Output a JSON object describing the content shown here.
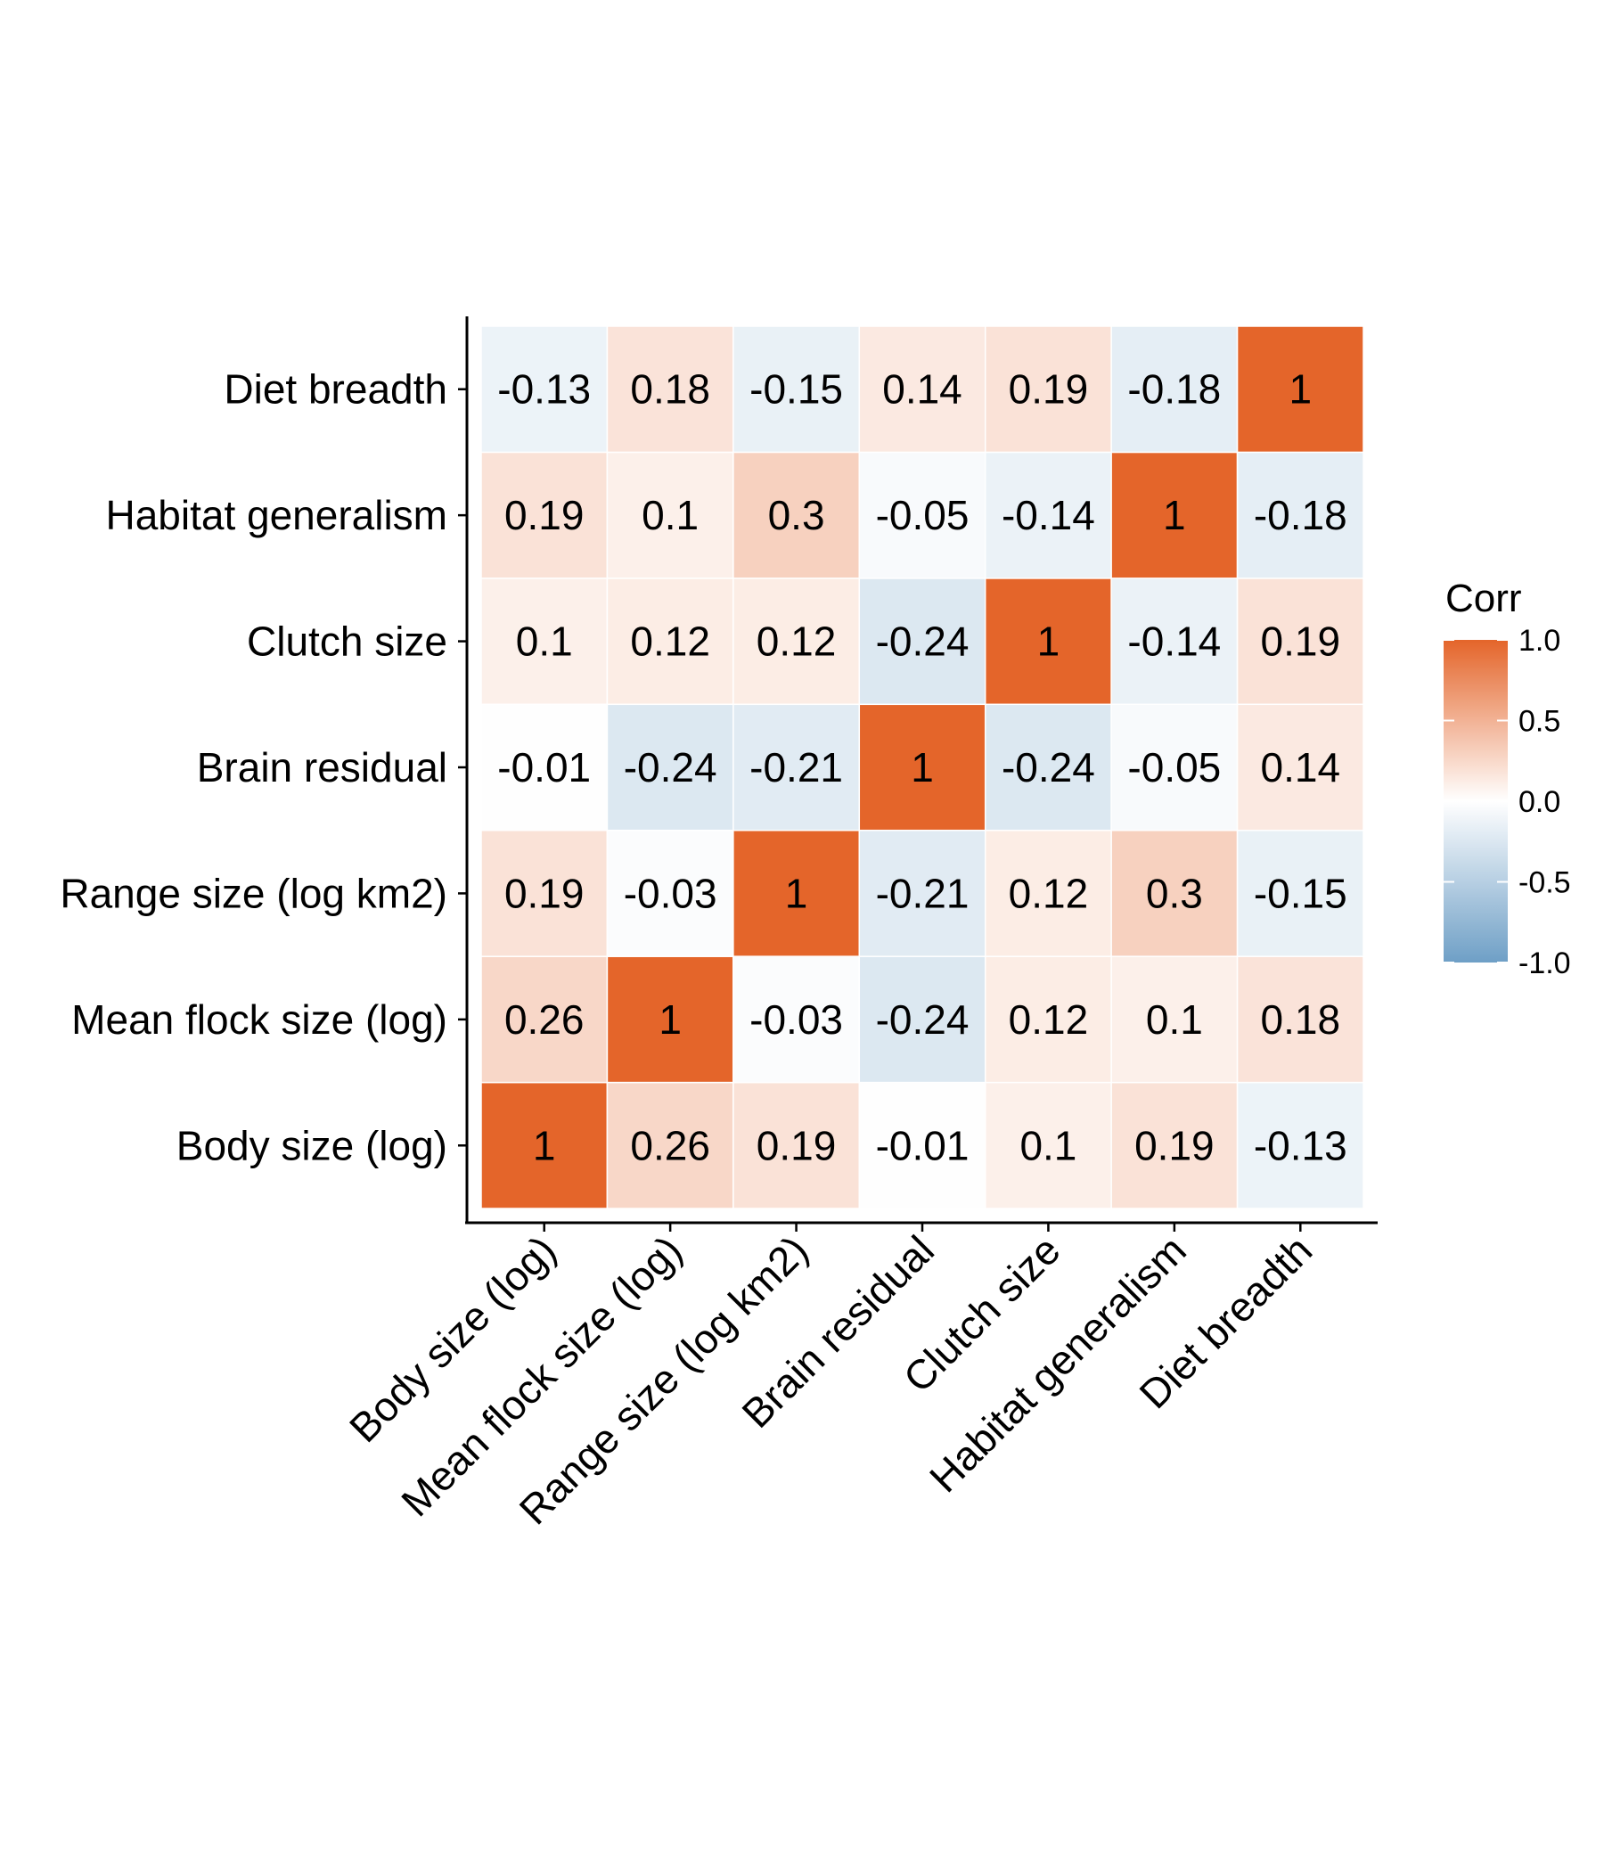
{
  "chart_data": {
    "type": "heatmap",
    "variables": [
      "Body size (log)",
      "Mean flock size (log)",
      "Range size (log km2)",
      "Brain residual",
      "Clutch size",
      "Habitat generalism",
      "Diet breadth"
    ],
    "matrix": [
      [
        1,
        0.26,
        0.19,
        -0.01,
        0.1,
        0.19,
        -0.13
      ],
      [
        0.26,
        1,
        -0.03,
        -0.24,
        0.12,
        0.1,
        0.18
      ],
      [
        0.19,
        -0.03,
        1,
        -0.21,
        0.12,
        0.3,
        -0.15
      ],
      [
        -0.01,
        -0.24,
        -0.21,
        1,
        -0.24,
        -0.05,
        0.14
      ],
      [
        0.1,
        0.12,
        0.12,
        -0.24,
        1,
        -0.14,
        0.19
      ],
      [
        0.19,
        0.1,
        0.3,
        -0.05,
        -0.14,
        1,
        -0.18
      ],
      [
        -0.13,
        0.18,
        -0.15,
        0.14,
        0.19,
        -0.18,
        1
      ]
    ],
    "cell_labels": [
      [
        "1",
        "0.26",
        "0.19",
        "-0.01",
        "0.1",
        "0.19",
        "-0.13"
      ],
      [
        "0.26",
        "1",
        "-0.03",
        "-0.24",
        "0.12",
        "0.1",
        "0.18"
      ],
      [
        "0.19",
        "-0.03",
        "1",
        "-0.21",
        "0.12",
        "0.3",
        "-0.15"
      ],
      [
        "-0.01",
        "-0.24",
        "-0.21",
        "1",
        "-0.24",
        "-0.05",
        "0.14"
      ],
      [
        "0.1",
        "0.12",
        "0.12",
        "-0.24",
        "1",
        "-0.14",
        "0.19"
      ],
      [
        "0.19",
        "0.1",
        "0.3",
        "-0.05",
        "-0.14",
        "1",
        "-0.18"
      ],
      [
        "-0.13",
        "0.18",
        "-0.15",
        "0.14",
        "0.19",
        "-0.18",
        "1"
      ]
    ],
    "legend": {
      "title": "Corr",
      "ticks": [
        {
          "value": 1.0,
          "label": "1.0"
        },
        {
          "value": 0.5,
          "label": "0.5"
        },
        {
          "value": 0.0,
          "label": "0.0"
        },
        {
          "value": -0.5,
          "label": "-0.5"
        },
        {
          "value": -1.0,
          "label": "-1.0"
        }
      ],
      "limits": [
        -1,
        1
      ],
      "placement": "right"
    },
    "colors": {
      "low": "#6e9fc6",
      "mid": "#ffffff",
      "high": "#e4652a"
    },
    "grid": false
  }
}
